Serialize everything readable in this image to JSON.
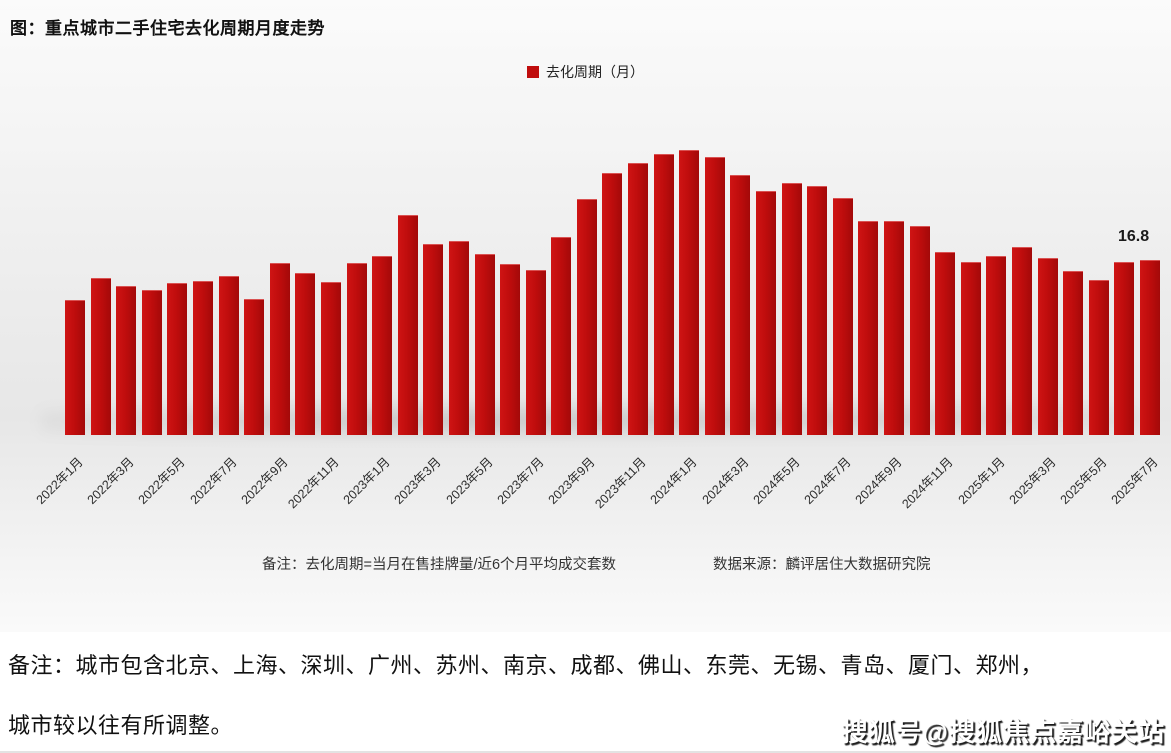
{
  "chart": {
    "title": "图：重点城市二手住宅去化周期月度走势",
    "legend_label": "去化周期（月）",
    "note": "备注：去化周期=当月在售挂牌量/近6个月平均成交套数",
    "source": "数据来源：麟评居住大数据研究院",
    "last_value_label": "16.8",
    "bar_color": "#c00d0d"
  },
  "chart_data": {
    "type": "bar",
    "title": "图：重点城市二手住宅去化周期月度走势",
    "legend": [
      "去化周期（月）"
    ],
    "legend_position": "top-center",
    "grid": false,
    "ylim": [
      0,
      28.4
    ],
    "xlabel": "",
    "ylabel": "去化周期（月）",
    "categories": [
      "2022年1月",
      "2022年2月",
      "2022年3月",
      "2022年4月",
      "2022年5月",
      "2022年6月",
      "2022年7月",
      "2022年8月",
      "2022年9月",
      "2022年10月",
      "2022年11月",
      "2022年12月",
      "2023年1月",
      "2023年2月",
      "2023年3月",
      "2023年4月",
      "2023年5月",
      "2023年6月",
      "2023年7月",
      "2023年8月",
      "2023年9月",
      "2023年10月",
      "2023年11月",
      "2023年12月",
      "2024年1月",
      "2024年2月",
      "2024年3月",
      "2024年4月",
      "2024年5月",
      "2024年6月",
      "2024年7月",
      "2024年8月",
      "2024年9月",
      "2024年10月",
      "2024年11月",
      "2024年12月",
      "2025年1月",
      "2025年2月",
      "2025年3月",
      "2025年4月",
      "2025年5月",
      "2025年6月",
      "2025年7月"
    ],
    "values": [
      13.0,
      15.1,
      14.3,
      13.9,
      14.6,
      14.8,
      15.3,
      13.1,
      16.5,
      15.6,
      14.7,
      16.5,
      17.2,
      21.2,
      18.4,
      18.7,
      17.4,
      16.4,
      15.9,
      19.0,
      22.7,
      25.2,
      26.2,
      27.0,
      27.4,
      26.7,
      25.0,
      23.5,
      24.2,
      23.9,
      22.8,
      20.6,
      20.6,
      20.1,
      17.6,
      16.6,
      17.2,
      18.1,
      17.0,
      15.8,
      14.9,
      16.6,
      16.8
    ],
    "tick_labels": [
      "2022年1月",
      "2022年3月",
      "2022年5月",
      "2022年7月",
      "2022年9月",
      "2022年11月",
      "2023年1月",
      "2023年3月",
      "2023年5月",
      "2023年7月",
      "2023年9月",
      "2023年11月",
      "2024年1月",
      "2024年3月",
      "2024年5月",
      "2024年7月",
      "2024年9月",
      "2024年11月",
      "2025年1月",
      "2025年3月",
      "2025年5月",
      "2025年7月"
    ],
    "annotations": [
      {
        "category": "2025年7月",
        "text": "16.8"
      }
    ]
  },
  "footer": {
    "line1": "备注：城市包含北京、上海、深圳、广州、苏州、南京、成都、佛山、东莞、无锡、青岛、厦门、郑州，",
    "line2": "城市较以往有所调整。",
    "watermark": "搜狐号@搜狐焦点嘉峪关站"
  }
}
